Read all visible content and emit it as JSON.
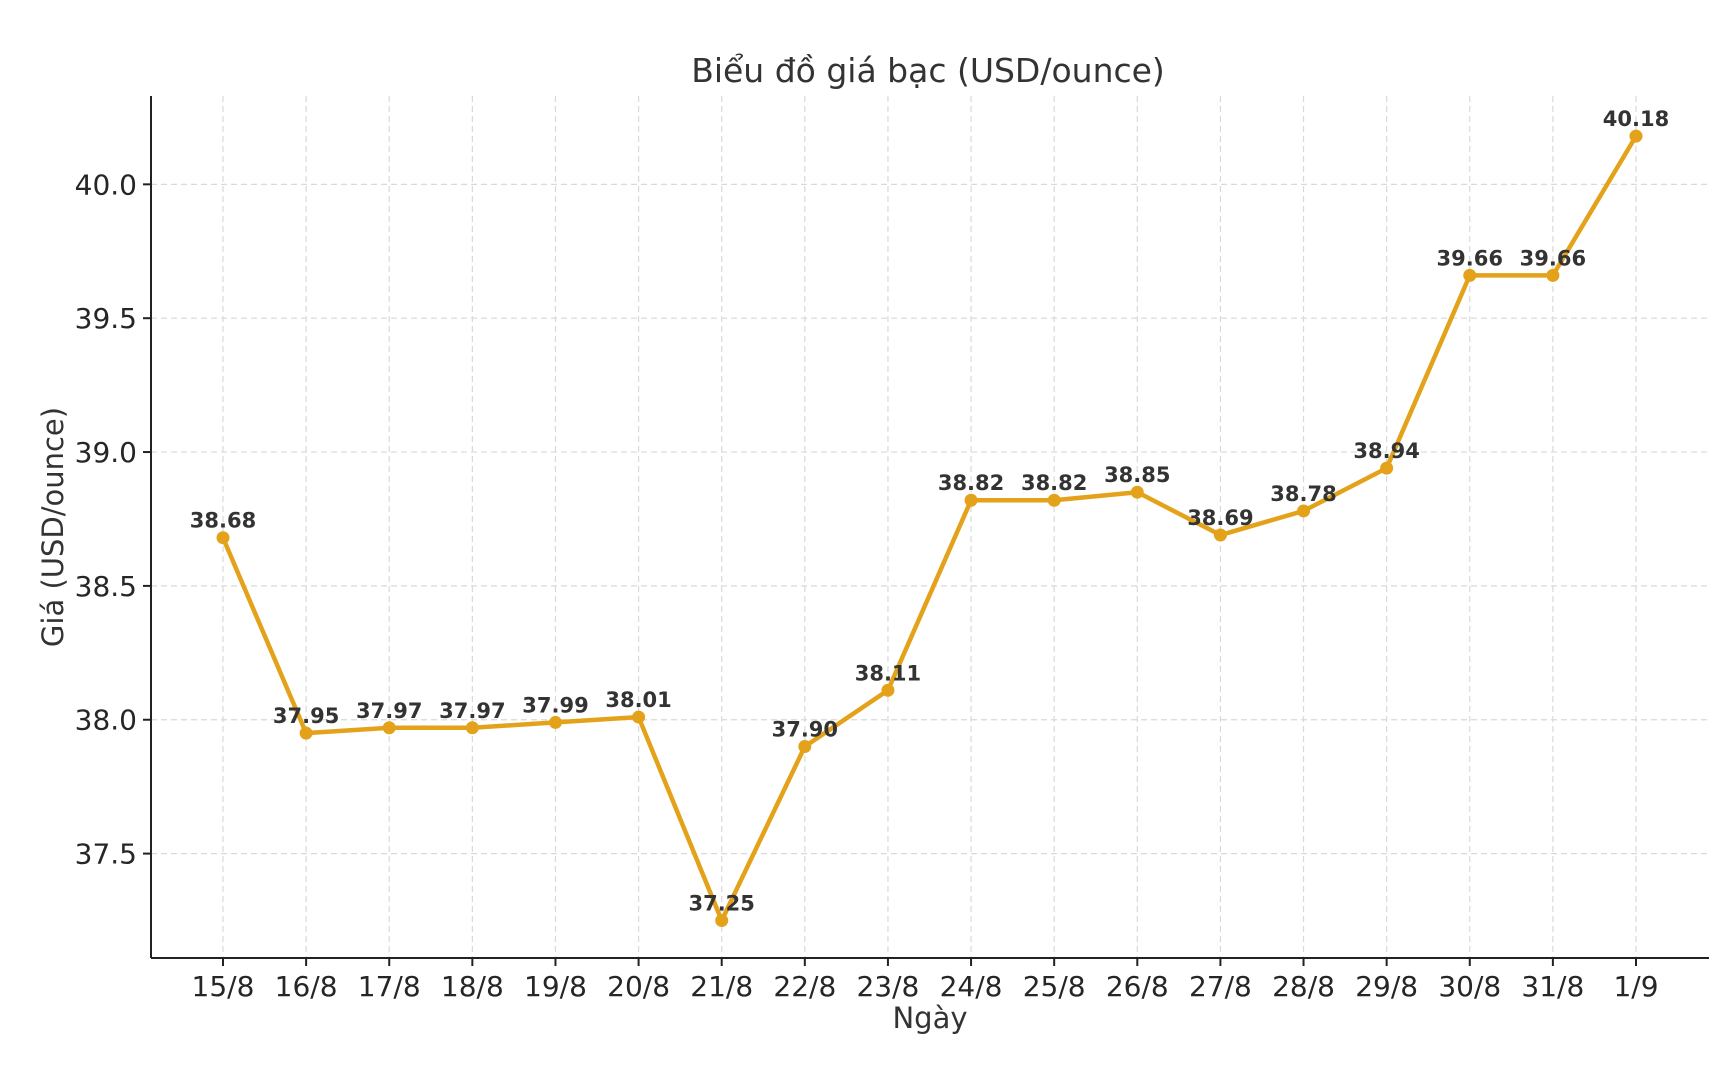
{
  "chart_data": {
    "type": "line",
    "title": "Biểu đồ giá bạc (USD/ounce)",
    "xlabel": "Ngày",
    "ylabel": "Giá (USD/ounce)",
    "categories": [
      "15/8",
      "16/8",
      "17/8",
      "18/8",
      "19/8",
      "20/8",
      "21/8",
      "22/8",
      "23/8",
      "24/8",
      "25/8",
      "26/8",
      "27/8",
      "28/8",
      "29/8",
      "30/8",
      "31/8",
      "1/9"
    ],
    "values": [
      38.68,
      37.95,
      37.97,
      37.97,
      37.99,
      38.01,
      37.25,
      37.9,
      38.11,
      38.82,
      38.82,
      38.85,
      38.69,
      38.78,
      38.94,
      39.66,
      39.66,
      40.18
    ],
    "data_labels": [
      "38.68",
      "37.95",
      "37.97",
      "37.97",
      "37.99",
      "38.01",
      "37.25",
      "37.90",
      "38.11",
      "38.82",
      "38.82",
      "38.85",
      "38.69",
      "38.78",
      "38.94",
      "39.66",
      "39.66",
      "40.18"
    ],
    "yticks": [
      37.5,
      38.0,
      38.5,
      39.0,
      39.5,
      40.0
    ],
    "ytick_labels": [
      "37.5",
      "38.0",
      "38.5",
      "39.0",
      "39.5",
      "40.0"
    ],
    "ylim": [
      37.11,
      40.33
    ],
    "grid": true,
    "colors": {
      "line": "#E3A21A",
      "marker": "#E3A21A"
    }
  }
}
